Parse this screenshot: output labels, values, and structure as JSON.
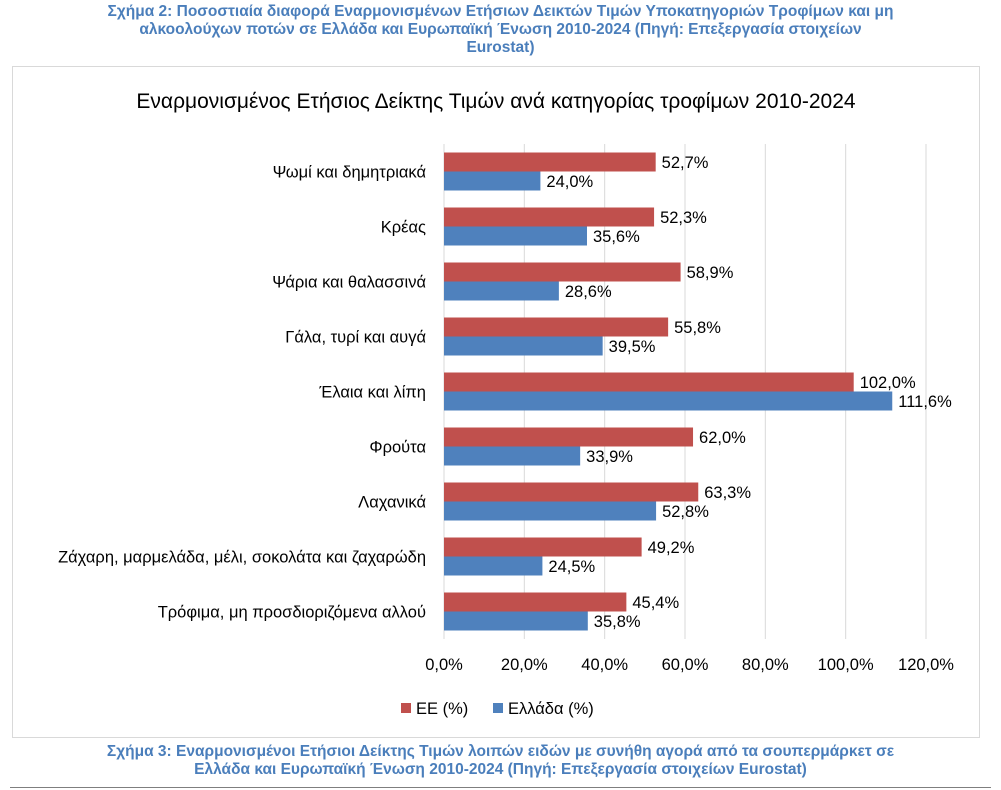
{
  "caption_top": [
    "Σχήμα 2: Ποσοστιαία διαφορά Εναρμονισμένων Ετήσιων Δεικτών Τιμών Υποκατηγοριών Τροφίμων και μη",
    "αλκοολούχων ποτών σε Ελλάδα και Ευρωπαϊκή Ένωση 2010-2024 (Πηγή: Επεξεργασία στοιχείων",
    "Eurostat)"
  ],
  "caption_bottom": [
    "Σχήμα 3: Εναρμονισμένοι Ετήσιοι Δείκτης Τιμών λοιπών ειδών με συνήθη αγορά από τα σουπερμάρκετ σε",
    "Ελλάδα και Ευρωπαϊκή Ένωση 2010-2024 (Πηγή: Επεξεργασία στοιχείων Eurostat)"
  ],
  "colors": {
    "ee": "#c0504d",
    "ellada": "#4f81bd",
    "grid": "#d9d9d9",
    "caption": "#4a7ebb"
  },
  "chart_data": {
    "type": "bar",
    "orientation": "horizontal",
    "title": "Εναρμονισμένος Ετήσιος Δείκτης Τιμών ανά κατηγορίας τροφίμων 2010-2024",
    "categories": [
      "Ψωμί και δημητριακά",
      "Κρέας",
      "Ψάρια και θαλασσινά",
      "Γάλα, τυρί και αυγά",
      "Έλαια και λίπη",
      "Φρούτα",
      "Λαχανικά",
      "Ζάχαρη, μαρμελάδα, μέλι, σοκολάτα και ζαχαρώδη",
      "Τρόφιμα, μη προσδιοριζόμενα αλλού"
    ],
    "series": [
      {
        "name": "ΕΕ (%)",
        "values": [
          52.7,
          52.3,
          58.9,
          55.8,
          102.0,
          62.0,
          63.3,
          49.2,
          45.4
        ],
        "labels": [
          "52,7%",
          "52,3%",
          "58,9%",
          "55,8%",
          "102,0%",
          "62,0%",
          "63,3%",
          "49,2%",
          "45,4%"
        ]
      },
      {
        "name": "Ελλάδα (%)",
        "values": [
          24.0,
          35.6,
          28.6,
          39.5,
          111.6,
          33.9,
          52.8,
          24.5,
          35.8
        ],
        "labels": [
          "24,0%",
          "35,6%",
          "28,6%",
          "39,5%",
          "111,6%",
          "33,9%",
          "52,8%",
          "24,5%",
          "35,8%"
        ]
      }
    ],
    "xlim": [
      0,
      120
    ],
    "xticks": [
      0,
      20,
      40,
      60,
      80,
      100,
      120
    ],
    "xtick_labels": [
      "0,0%",
      "20,0%",
      "40,0%",
      "60,0%",
      "80,0%",
      "100,0%",
      "120,0%"
    ],
    "grid": true,
    "legend_position": "bottom"
  }
}
